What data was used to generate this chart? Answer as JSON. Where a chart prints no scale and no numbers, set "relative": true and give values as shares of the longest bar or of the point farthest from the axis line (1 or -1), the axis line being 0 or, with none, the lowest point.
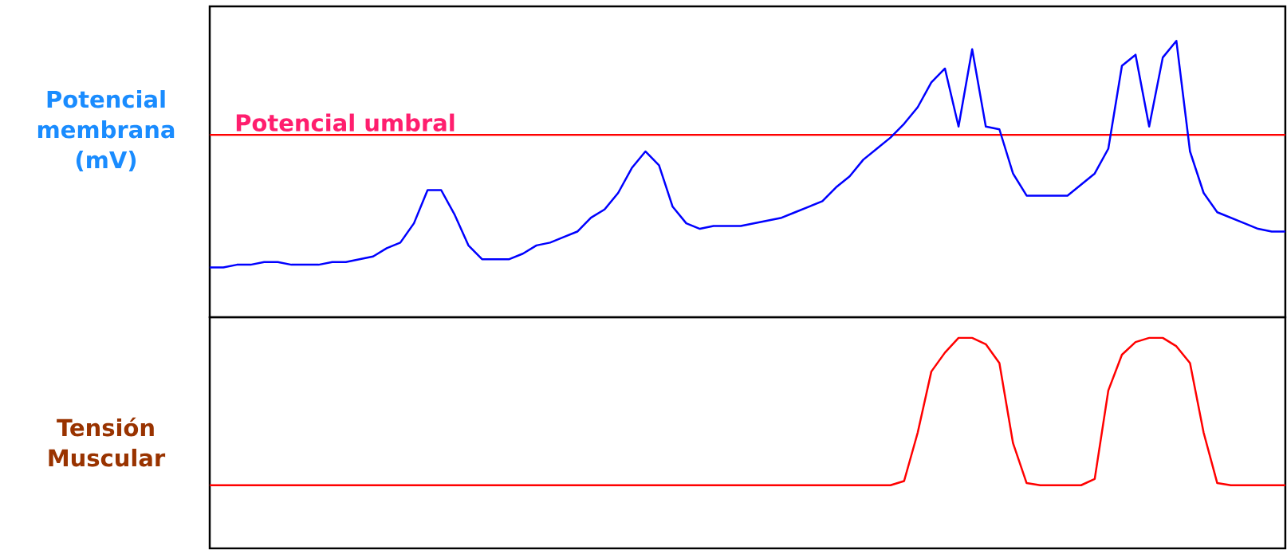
{
  "chart_data": [
    {
      "type": "line",
      "ylabel": "Potencial membrana (mV)",
      "relative": true,
      "categories": [
        null,
        null,
        null,
        null,
        null,
        null,
        null,
        null,
        null,
        null,
        null,
        null,
        null,
        null,
        null,
        null,
        null,
        null,
        null,
        null,
        null,
        null,
        null,
        null,
        null,
        null,
        null,
        null,
        null,
        null,
        null,
        null,
        null,
        null,
        null,
        null,
        null,
        null,
        null,
        null,
        null,
        null,
        null,
        null,
        null,
        null,
        null,
        null,
        null,
        null,
        null,
        null,
        null,
        null,
        null,
        null,
        null,
        null,
        null,
        null,
        null,
        null,
        null,
        null,
        null,
        null,
        null,
        null,
        null,
        null,
        null,
        null,
        null,
        null,
        null,
        null,
        null,
        null,
        null,
        null
      ],
      "series": [
        {
          "color": "#0000ff",
          "values": [
            0.18,
            0.18,
            0.19,
            0.19,
            0.2,
            0.2,
            0.19,
            0.19,
            0.19,
            0.2,
            0.2,
            0.21,
            0.22,
            0.25,
            0.27,
            0.34,
            0.46,
            0.46,
            0.37,
            0.26,
            0.21,
            0.21,
            0.21,
            0.23,
            0.26,
            0.27,
            0.29,
            0.31,
            0.36,
            0.39,
            0.45,
            0.54,
            0.6,
            0.55,
            0.4,
            0.34,
            0.32,
            0.33,
            0.33,
            0.33,
            0.34,
            0.35,
            0.36,
            0.38,
            0.4,
            0.42,
            0.47,
            0.51,
            0.57,
            0.61,
            0.65,
            0.7,
            0.76,
            0.85,
            0.9,
            0.69,
            0.97,
            0.69,
            0.68,
            0.52,
            0.44,
            0.44,
            0.44,
            0.44,
            0.48,
            0.52,
            0.61,
            0.91,
            0.95,
            0.69,
            0.94,
            1,
            0.6,
            0.45,
            0.38,
            0.36,
            0.34,
            0.32,
            0.31,
            0.31
          ]
        }
      ],
      "ref_lines": [
        {
          "axis": "y",
          "value": 0.66,
          "label": "Potencial umbral",
          "color": "#ff0000"
        }
      ]
    },
    {
      "type": "line",
      "ylabel": "Tensión Muscular",
      "relative": true,
      "categories": [
        null,
        null,
        null,
        null,
        null,
        null,
        null,
        null,
        null,
        null,
        null,
        null,
        null,
        null,
        null,
        null,
        null,
        null,
        null,
        null,
        null,
        null,
        null,
        null,
        null,
        null,
        null,
        null,
        null,
        null,
        null,
        null,
        null,
        null,
        null,
        null,
        null,
        null,
        null,
        null,
        null,
        null,
        null,
        null,
        null,
        null,
        null,
        null,
        null,
        null,
        null,
        null,
        null,
        null,
        null,
        null,
        null,
        null,
        null,
        null,
        null,
        null,
        null,
        null,
        null,
        null,
        null,
        null,
        null,
        null,
        null,
        null,
        null,
        null,
        null,
        null,
        null,
        null,
        null,
        null
      ],
      "series": [
        {
          "color": "#ff0000",
          "values": [
            0.3,
            0.3,
            0.3,
            0.3,
            0.3,
            0.3,
            0.3,
            0.3,
            0.3,
            0.3,
            0.3,
            0.3,
            0.3,
            0.3,
            0.3,
            0.3,
            0.3,
            0.3,
            0.3,
            0.3,
            0.3,
            0.3,
            0.3,
            0.3,
            0.3,
            0.3,
            0.3,
            0.3,
            0.3,
            0.3,
            0.3,
            0.3,
            0.3,
            0.3,
            0.3,
            0.3,
            0.3,
            0.3,
            0.3,
            0.3,
            0.3,
            0.3,
            0.3,
            0.3,
            0.3,
            0.3,
            0.3,
            0.3,
            0.3,
            0.3,
            0.3,
            0.32,
            0.55,
            0.84,
            0.93,
            1,
            1,
            0.97,
            0.88,
            0.5,
            0.31,
            0.3,
            0.3,
            0.3,
            0.3,
            0.33,
            0.75,
            0.92,
            0.98,
            1,
            1,
            0.96,
            0.88,
            0.55,
            0.31,
            0.3,
            0.3,
            0.3,
            0.3,
            0.3
          ]
        }
      ]
    }
  ]
}
